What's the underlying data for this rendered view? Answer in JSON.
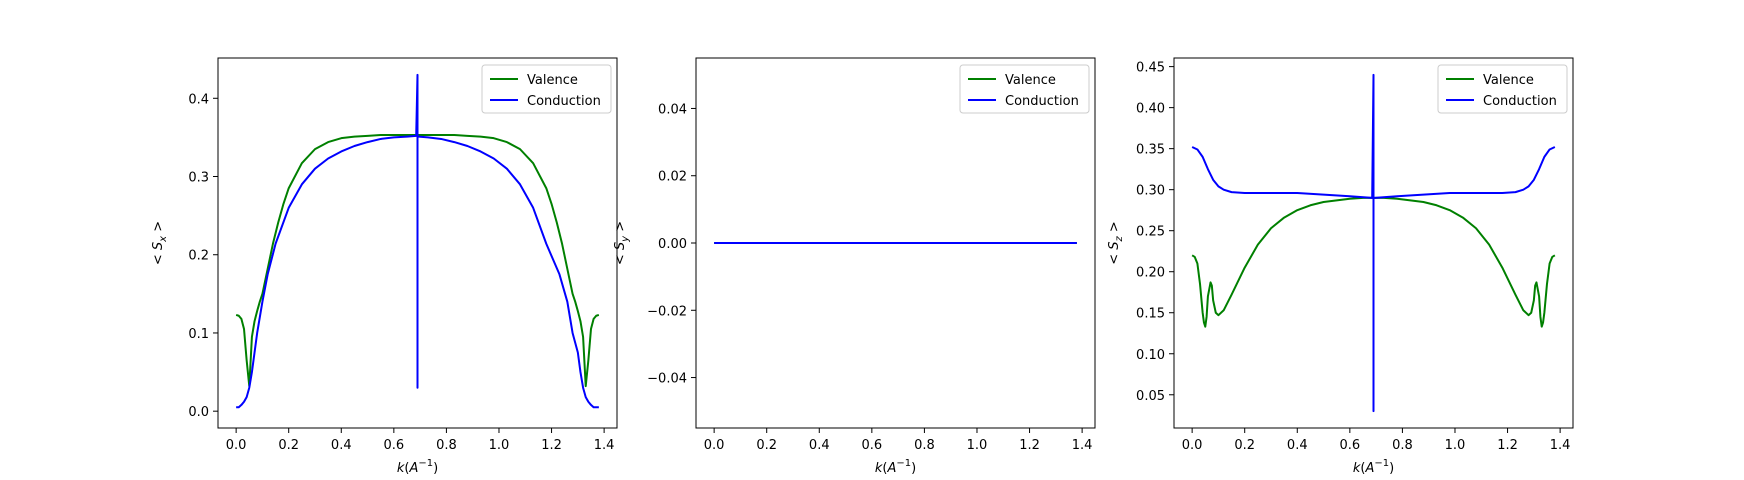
{
  "chart_data": [
    {
      "type": "line",
      "xlabel": "k(A^{-1})",
      "ylabel": "< S_x >",
      "ylabel_sub": "x",
      "xlim": [
        -0.069,
        1.449
      ],
      "ylim": [
        -0.0215,
        0.4515
      ],
      "xticks": [
        0.0,
        0.2,
        0.4,
        0.6,
        0.8,
        1.0,
        1.2,
        1.4
      ],
      "xtick_labels": [
        "0.0",
        "0.2",
        "0.4",
        "0.6",
        "0.8",
        "1.0",
        "1.2",
        "1.4"
      ],
      "yticks": [
        0.0,
        0.1,
        0.2,
        0.3,
        0.4
      ],
      "ytick_labels": [
        "0.0",
        "0.1",
        "0.2",
        "0.3",
        "0.4"
      ],
      "legend": "top-right",
      "grid": false,
      "series": [
        {
          "name": "Valence",
          "color": "#008000",
          "x": [
            0.0,
            0.01,
            0.02,
            0.03,
            0.04,
            0.05,
            0.06,
            0.07,
            0.08,
            0.09,
            0.1,
            0.12,
            0.14,
            0.16,
            0.18,
            0.2,
            0.25,
            0.3,
            0.35,
            0.4,
            0.45,
            0.5,
            0.55,
            0.6,
            0.65,
            0.69,
            0.73,
            0.78,
            0.83,
            0.88,
            0.93,
            0.98,
            1.03,
            1.08,
            1.13,
            1.18,
            1.2,
            1.22,
            1.24,
            1.26,
            1.28,
            1.29,
            1.3,
            1.31,
            1.32,
            1.33,
            1.34,
            1.35,
            1.36,
            1.37,
            1.38
          ],
          "y": [
            0.123,
            0.122,
            0.118,
            0.105,
            0.065,
            0.032,
            0.095,
            0.115,
            0.128,
            0.14,
            0.15,
            0.182,
            0.214,
            0.241,
            0.265,
            0.285,
            0.317,
            0.335,
            0.344,
            0.349,
            0.351,
            0.352,
            0.353,
            0.353,
            0.353,
            0.353,
            0.353,
            0.353,
            0.353,
            0.352,
            0.351,
            0.349,
            0.344,
            0.335,
            0.317,
            0.285,
            0.265,
            0.241,
            0.214,
            0.182,
            0.15,
            0.14,
            0.128,
            0.115,
            0.095,
            0.032,
            0.065,
            0.105,
            0.118,
            0.122,
            0.123
          ]
        },
        {
          "name": "Conduction",
          "color": "#0000ff",
          "x": [
            0.0,
            0.01,
            0.02,
            0.03,
            0.04,
            0.05,
            0.06,
            0.07,
            0.08,
            0.1,
            0.12,
            0.15,
            0.2,
            0.25,
            0.3,
            0.35,
            0.4,
            0.45,
            0.5,
            0.55,
            0.6,
            0.65,
            0.685,
            0.69,
            0.69,
            0.69,
            0.695,
            0.73,
            0.78,
            0.83,
            0.88,
            0.93,
            0.98,
            1.03,
            1.08,
            1.13,
            1.18,
            1.23,
            1.26,
            1.28,
            1.3,
            1.31,
            1.32,
            1.33,
            1.34,
            1.35,
            1.36,
            1.37,
            1.38
          ],
          "y": [
            0.005,
            0.005,
            0.008,
            0.012,
            0.018,
            0.03,
            0.05,
            0.075,
            0.1,
            0.14,
            0.175,
            0.214,
            0.26,
            0.29,
            0.31,
            0.323,
            0.332,
            0.339,
            0.344,
            0.348,
            0.35,
            0.351,
            0.352,
            0.43,
            0.03,
            0.352,
            0.351,
            0.35,
            0.348,
            0.344,
            0.339,
            0.332,
            0.323,
            0.31,
            0.29,
            0.26,
            0.214,
            0.175,
            0.14,
            0.1,
            0.075,
            0.05,
            0.03,
            0.018,
            0.012,
            0.008,
            0.005,
            0.005,
            0.005
          ]
        }
      ]
    },
    {
      "type": "line",
      "xlabel": "k(A^{-1})",
      "ylabel": "< S_y >",
      "ylabel_sub": "y",
      "xlim": [
        -0.069,
        1.449
      ],
      "ylim": [
        -0.055,
        0.055
      ],
      "xticks": [
        0.0,
        0.2,
        0.4,
        0.6,
        0.8,
        1.0,
        1.2,
        1.4
      ],
      "xtick_labels": [
        "0.0",
        "0.2",
        "0.4",
        "0.6",
        "0.8",
        "1.0",
        "1.2",
        "1.4"
      ],
      "yticks": [
        -0.04,
        -0.02,
        0.0,
        0.02,
        0.04
      ],
      "ytick_labels": [
        "−0.04",
        "−0.02",
        "0.00",
        "0.02",
        "0.04"
      ],
      "legend": "top-right",
      "grid": false,
      "series": [
        {
          "name": "Valence",
          "color": "#008000",
          "x": [
            0.0,
            1.38
          ],
          "y": [
            0.0,
            0.0
          ]
        },
        {
          "name": "Conduction",
          "color": "#0000ff",
          "x": [
            0.0,
            1.38
          ],
          "y": [
            0.0,
            0.0
          ]
        }
      ]
    },
    {
      "type": "line",
      "xlabel": "k(A^{-1})",
      "ylabel": "< S_z >",
      "ylabel_sub": "z",
      "xlim": [
        -0.069,
        1.449
      ],
      "ylim": [
        0.0095,
        0.4605
      ],
      "xticks": [
        0.0,
        0.2,
        0.4,
        0.6,
        0.8,
        1.0,
        1.2,
        1.4
      ],
      "xtick_labels": [
        "0.0",
        "0.2",
        "0.4",
        "0.6",
        "0.8",
        "1.0",
        "1.2",
        "1.4"
      ],
      "yticks": [
        0.05,
        0.1,
        0.15,
        0.2,
        0.25,
        0.3,
        0.35,
        0.4,
        0.45
      ],
      "ytick_labels": [
        "0.05",
        "0.10",
        "0.15",
        "0.20",
        "0.25",
        "0.30",
        "0.35",
        "0.40",
        "0.45"
      ],
      "legend": "top-right",
      "grid": false,
      "series": [
        {
          "name": "Valence",
          "color": "#008000",
          "x": [
            0.0,
            0.01,
            0.02,
            0.03,
            0.04,
            0.045,
            0.05,
            0.055,
            0.06,
            0.07,
            0.075,
            0.08,
            0.09,
            0.1,
            0.12,
            0.15,
            0.2,
            0.25,
            0.3,
            0.35,
            0.4,
            0.45,
            0.5,
            0.55,
            0.6,
            0.65,
            0.69,
            0.73,
            0.78,
            0.83,
            0.88,
            0.93,
            0.98,
            1.03,
            1.08,
            1.13,
            1.18,
            1.23,
            1.26,
            1.28,
            1.29,
            1.3,
            1.305,
            1.31,
            1.32,
            1.325,
            1.33,
            1.335,
            1.34,
            1.35,
            1.36,
            1.37,
            1.38
          ],
          "y": [
            0.22,
            0.218,
            0.21,
            0.185,
            0.15,
            0.138,
            0.133,
            0.145,
            0.17,
            0.187,
            0.183,
            0.165,
            0.15,
            0.147,
            0.153,
            0.172,
            0.205,
            0.233,
            0.253,
            0.266,
            0.275,
            0.281,
            0.285,
            0.287,
            0.289,
            0.29,
            0.29,
            0.29,
            0.289,
            0.287,
            0.285,
            0.281,
            0.275,
            0.266,
            0.253,
            0.233,
            0.205,
            0.172,
            0.153,
            0.147,
            0.15,
            0.165,
            0.183,
            0.187,
            0.17,
            0.145,
            0.133,
            0.138,
            0.15,
            0.185,
            0.21,
            0.218,
            0.22
          ]
        },
        {
          "name": "Conduction",
          "color": "#0000ff",
          "x": [
            0.0,
            0.02,
            0.04,
            0.06,
            0.08,
            0.1,
            0.12,
            0.15,
            0.2,
            0.3,
            0.4,
            0.5,
            0.6,
            0.685,
            0.69,
            0.69,
            0.69,
            0.695,
            0.78,
            0.88,
            0.98,
            1.08,
            1.18,
            1.23,
            1.26,
            1.28,
            1.3,
            1.32,
            1.34,
            1.36,
            1.38
          ],
          "y": [
            0.352,
            0.349,
            0.34,
            0.325,
            0.312,
            0.304,
            0.3,
            0.297,
            0.296,
            0.296,
            0.296,
            0.294,
            0.292,
            0.29,
            0.44,
            0.03,
            0.29,
            0.29,
            0.292,
            0.294,
            0.296,
            0.296,
            0.296,
            0.297,
            0.3,
            0.304,
            0.312,
            0.325,
            0.34,
            0.349,
            0.352
          ]
        }
      ]
    }
  ]
}
